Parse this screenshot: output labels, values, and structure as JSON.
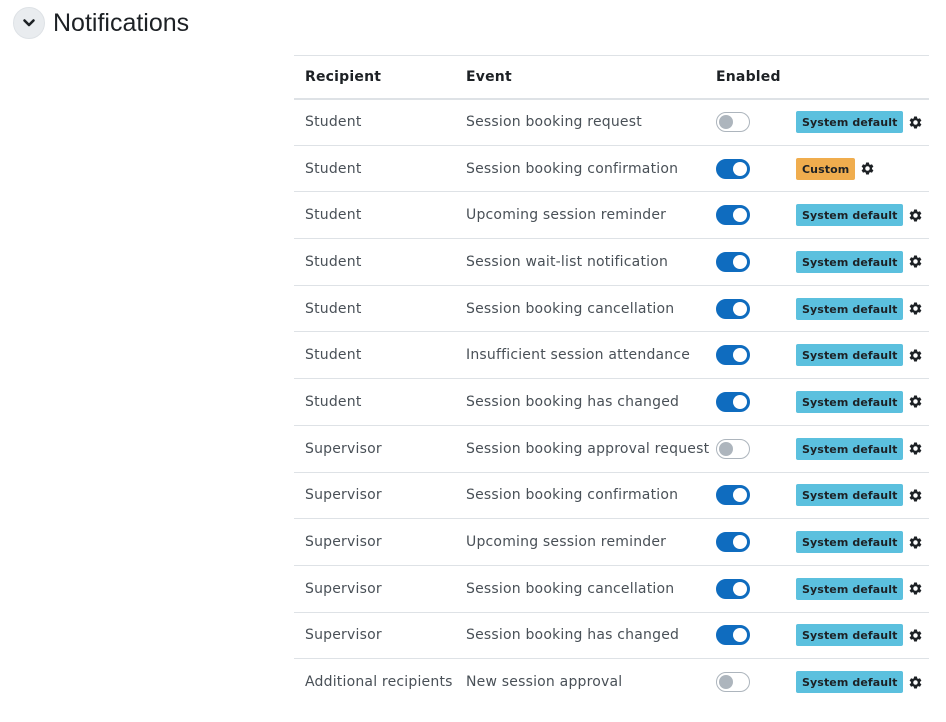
{
  "section": {
    "title": "Notifications"
  },
  "table": {
    "headers": {
      "recipient": "Recipient",
      "event": "Event",
      "enabled": "Enabled"
    },
    "rows": [
      {
        "recipient": "Student",
        "event": "Session booking request",
        "enabled": false,
        "status": "System default",
        "status_type": "system"
      },
      {
        "recipient": "Student",
        "event": "Session booking confirmation",
        "enabled": true,
        "status": "Custom",
        "status_type": "custom"
      },
      {
        "recipient": "Student",
        "event": "Upcoming session reminder",
        "enabled": true,
        "status": "System default",
        "status_type": "system"
      },
      {
        "recipient": "Student",
        "event": "Session wait-list notification",
        "enabled": true,
        "status": "System default",
        "status_type": "system"
      },
      {
        "recipient": "Student",
        "event": "Session booking cancellation",
        "enabled": true,
        "status": "System default",
        "status_type": "system"
      },
      {
        "recipient": "Student",
        "event": "Insufficient session attendance",
        "enabled": true,
        "status": "System default",
        "status_type": "system"
      },
      {
        "recipient": "Student",
        "event": "Session booking has changed",
        "enabled": true,
        "status": "System default",
        "status_type": "system"
      },
      {
        "recipient": "Supervisor",
        "event": "Session booking approval request",
        "enabled": false,
        "status": "System default",
        "status_type": "system"
      },
      {
        "recipient": "Supervisor",
        "event": "Session booking confirmation",
        "enabled": true,
        "status": "System default",
        "status_type": "system"
      },
      {
        "recipient": "Supervisor",
        "event": "Upcoming session reminder",
        "enabled": true,
        "status": "System default",
        "status_type": "system"
      },
      {
        "recipient": "Supervisor",
        "event": "Session booking cancellation",
        "enabled": true,
        "status": "System default",
        "status_type": "system"
      },
      {
        "recipient": "Supervisor",
        "event": "Session booking has changed",
        "enabled": true,
        "status": "System default",
        "status_type": "system"
      },
      {
        "recipient": "Additional recipients",
        "event": "New session approval",
        "enabled": false,
        "status": "System default",
        "status_type": "system"
      }
    ]
  },
  "icons": {
    "collapse": "chevron-down-icon",
    "settings": "gear-icon"
  },
  "colors": {
    "toggle_on": "#0f6cbf",
    "toggle_off_knob": "#adb5bd",
    "badge_system": "#5bc0de",
    "badge_custom": "#f0ad4e"
  }
}
